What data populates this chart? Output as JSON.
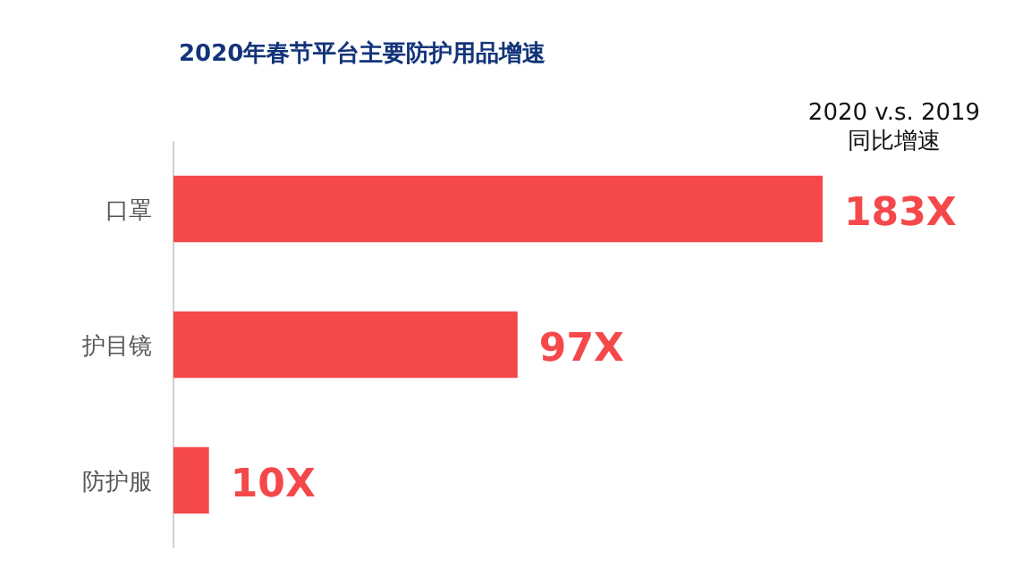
{
  "chart_data": {
    "type": "bar",
    "orientation": "horizontal",
    "title": "2020年春节平台主要防护用品增速",
    "categories": [
      "口罩",
      "护目镜",
      "防护服"
    ],
    "values": [
      183,
      97,
      10
    ],
    "value_labels": [
      "183X",
      "97X",
      "10X"
    ],
    "color": "#f5484a",
    "annotations": [
      "2020 v.s. 2019",
      "同比增速"
    ]
  }
}
